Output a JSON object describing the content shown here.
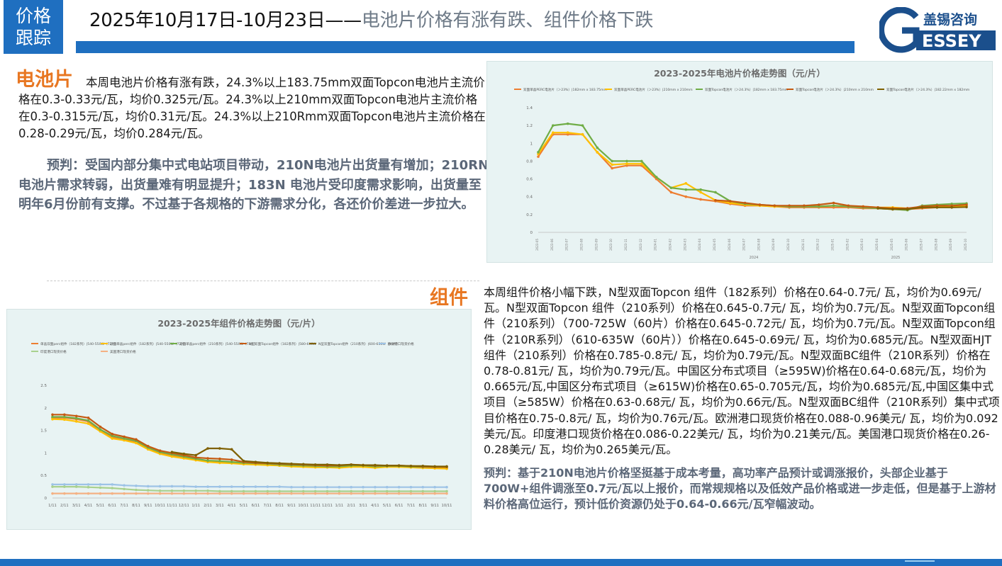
{
  "header": {
    "tag_line1": "价格",
    "tag_line2": "跟踪",
    "date_range": "2025年10月17日-10月23日——",
    "headline": "电池片价格有涨有跌、组件价格下跌",
    "brand_cn": "盖锡咨询",
    "brand_en": "ESSEY",
    "colors": {
      "accent": "#1f6fc0",
      "section": "#e87722",
      "forecast": "#5b6778"
    }
  },
  "cell": {
    "heading": "电池片",
    "summary": "本周电池片价格有涨有跌，24.3%以上183.75mm双面Topcon电池片主流价格在0.3-0.33元/瓦，均价0.325元/瓦。24.3%以上210mm双面Topcon电池片主流价格在0.3-0.315元/瓦，均价0.31元/瓦。24.3%以上210Rmm双面Topcon电池片主流价格在0.28-0.29元/瓦，均价0.284元/瓦。",
    "forecast": "预判：受国内部分集中式电站项目带动，210N电池片出货量有增加；210RN电池片需求转弱，出货量难有明显提升；183N 电池片受印度需求影响，出货量至明年6月份前有支撑。不过基于各规格的下游需求分化，各还价价差进一步拉大。"
  },
  "module": {
    "heading": "组件",
    "summary": "本周组件价格小幅下跌，N型双面Topcon 组件（182系列）价格在0.64-0.7元/ 瓦，均价为0.69元/瓦。N型双面Topcon 组件（210系列）价格在0.645-0.7元/ 瓦，均价为0.7元/瓦。N型双面Topcon组件（210系列）（700-725W（60片）价格在0.645-0.72元/ 瓦，均价为0.7元/瓦。N型双面Topcon组件（210R系列）（610-635W（60片））价格在0.645-0.69元/ 瓦，均价为0.685元/瓦。N型双面HJT组件（210系列）价格在0.785-0.8元/ 瓦，均价为0.79元/瓦。N型双面BC组件（210R系列）价格在0.78-0.81元/ 瓦，均价为0.79元/瓦。中国区分布式项目（≥595W)价格在0.64-0.68元/瓦，均价为0.665元/瓦,中国区分布式项目（≥615W)价格在0.65-0.705元/瓦，均价为0.685元/瓦,中国区集中式项目（≥585W）价格在0.63-0.68元/ 瓦，均价为0.66元/瓦。N型双面BC组件（210R系列）集中式项目价格在0.75-0.8元/ 瓦，均价为0.76元/瓦。欧洲港口现货价格在0.088-0.96美元/ 瓦，均价为0.092美元/瓦。印度港口现货价格在0.086-0.22美元/ 瓦，均价为0.21美元/瓦。美国港口现货价格在0.26-0.28美元/ 瓦，均价为0.265美元/瓦。",
    "forecast": "预判：基于210N电池片价格坚挺基于成本考量，高功率产品预计或调涨报价，头部企业基于700W+组件调涨至0.7元/瓦以上报价，而常规规格以及低效产品价格或进一步走低，但是基于上游材料价格高位运行，预计低价资源仍处于0.64-0.66元/瓦窄幅波动。"
  },
  "chart_data": [
    {
      "type": "line",
      "title": "2023-2025年电池片价格走势图（元/片）",
      "ylim": [
        0,
        1.4
      ],
      "yticks": [
        "1.4",
        "1.2",
        "1",
        "0.8",
        "0.6",
        "0.4",
        "0.2",
        "0"
      ],
      "year_labels": [
        "2024",
        "2025"
      ],
      "grid": false,
      "legend_placement": "top",
      "x": [
        "2023-05",
        "2023-06",
        "2023-07",
        "2023-08",
        "2023-09",
        "2023-10",
        "2023-11",
        "2023-12",
        "2024-01",
        "2024-02",
        "2024-03",
        "2024-04",
        "2024-05",
        "2024-06",
        "2024-07",
        "2024-08",
        "2024-09",
        "2024-10",
        "2024-11",
        "2024-12",
        "2025-01",
        "2025-02",
        "2025-03",
        "2025-04",
        "2025-05",
        "2025-06",
        "2025-07",
        "2025-08",
        "2025-09",
        "2025-10"
      ],
      "series": [
        {
          "name": "双面单晶PERC电池片（＞23%）|182mm x 183.75mm",
          "color": "#ed7d31",
          "values": [
            0.85,
            1.1,
            1.1,
            1.1,
            0.9,
            0.72,
            0.75,
            0.75,
            0.6,
            0.45,
            0.4,
            0.37,
            0.35,
            0.32,
            0.3,
            0.3,
            0.29,
            0.28,
            0.28,
            0.28,
            0.28,
            0.28,
            0.27,
            0.27,
            0.26,
            0.26,
            0.27,
            0.28,
            0.29,
            0.3
          ]
        },
        {
          "name": "双面单晶PERC电池片（＞23%）|210mm x 210mm",
          "color": "#ffc000",
          "values": [
            0.88,
            1.12,
            1.12,
            1.1,
            0.9,
            0.76,
            0.77,
            0.77,
            0.62,
            0.5,
            0.55,
            0.45,
            0.36,
            0.33,
            0.31,
            0.3,
            0.29,
            0.29,
            0.29,
            0.29,
            0.3,
            0.29,
            0.29,
            0.28,
            0.28,
            0.27,
            0.28,
            0.29,
            0.29,
            0.3
          ]
        },
        {
          "name": "双面Topcon电池片（＞24.3%）|182mm x 183.75mm",
          "color": "#70ad47",
          "values": [
            0.9,
            1.2,
            1.22,
            1.2,
            0.95,
            0.8,
            0.8,
            0.8,
            0.62,
            0.5,
            0.48,
            0.48,
            0.45,
            0.35,
            0.32,
            0.31,
            0.3,
            0.29,
            0.29,
            0.29,
            0.3,
            0.29,
            0.28,
            0.27,
            0.26,
            0.25,
            0.3,
            0.31,
            0.32,
            0.325
          ]
        },
        {
          "name": "双面Topcon电池片（＞24.3%）|210mm x 210mm",
          "color": "#c55a11",
          "values": [
            null,
            null,
            null,
            null,
            null,
            null,
            null,
            null,
            null,
            null,
            null,
            null,
            0.36,
            0.35,
            0.33,
            0.31,
            0.3,
            0.3,
            0.3,
            0.31,
            0.33,
            0.3,
            0.29,
            0.28,
            0.27,
            0.27,
            0.29,
            0.3,
            0.3,
            0.31
          ]
        },
        {
          "name": "双面Topcon电池片（＞24.3%）|182.22mm x 182mm",
          "color": "#7f6000",
          "values": [
            null,
            null,
            null,
            null,
            null,
            null,
            null,
            null,
            null,
            null,
            null,
            null,
            null,
            null,
            null,
            null,
            null,
            null,
            null,
            null,
            null,
            null,
            null,
            0.27,
            0.26,
            0.26,
            0.28,
            0.28,
            0.28,
            0.284
          ]
        }
      ]
    },
    {
      "type": "line",
      "title": "2023-2025年组件价格走势图（元/片）",
      "ylim": [
        0,
        2.5
      ],
      "yticks": [
        "2.5",
        "2",
        "1.5",
        "1",
        "0.5",
        "0"
      ],
      "grid": false,
      "legend_placement": "top",
      "x_ticks": [
        "1/11",
        "2/11",
        "3/11",
        "4/11",
        "5/11",
        "6/11",
        "7/11",
        "8/11",
        "9/11",
        "10/11",
        "11/11",
        "12/11",
        "1/11",
        "2/11",
        "3/11",
        "4/11",
        "5/11",
        "6/11",
        "7/11",
        "8/11",
        "9/11",
        "10/11",
        "11/11",
        "12/11",
        "1/11",
        "2/11",
        "3/11",
        "4/11",
        "5/11",
        "6/11",
        "7/11",
        "8/11",
        "9/11",
        "10/11"
      ],
      "series": [
        {
          "name": "单晶双面perc组件（182系列）|540-550W（72片）",
          "color": "#ed7d31",
          "values": [
            1.78,
            1.78,
            1.75,
            1.7,
            1.5,
            1.35,
            1.3,
            1.25,
            1.1,
            1.0,
            0.95,
            0.9,
            0.85,
            0.8,
            0.8,
            0.78,
            0.76,
            0.75,
            0.74,
            0.72,
            0.72,
            0.7,
            0.7,
            0.68,
            0.68,
            0.7,
            0.7,
            0.68,
            0.7,
            0.7,
            0.68,
            0.67,
            0.66,
            0.66
          ]
        },
        {
          "name": "双面单晶perc组件（182系列）|540-550W（72片）",
          "color": "#ffc000",
          "values": [
            1.75,
            1.74,
            1.7,
            1.65,
            1.48,
            1.32,
            1.28,
            1.22,
            1.08,
            0.98,
            0.92,
            0.88,
            0.84,
            0.8,
            0.78,
            0.77,
            0.75,
            0.74,
            0.73,
            0.72,
            0.7,
            0.69,
            0.68,
            0.68,
            0.67,
            0.69,
            0.69,
            0.67,
            0.69,
            0.69,
            0.68,
            0.67,
            0.66,
            0.65
          ]
        },
        {
          "name": "双面单晶perc组件（210系列）|540-550W（72片）",
          "color": "#70ad47",
          "values": [
            1.8,
            1.8,
            1.77,
            1.72,
            1.52,
            1.38,
            1.32,
            1.27,
            1.12,
            1.02,
            0.97,
            0.92,
            0.87,
            0.83,
            0.82,
            0.8,
            0.78,
            0.77,
            0.76,
            0.74,
            0.73,
            0.72,
            0.71,
            0.7,
            0.7,
            0.72,
            0.72,
            0.7,
            0.71,
            0.71,
            0.7,
            0.69,
            0.69,
            0.69
          ]
        },
        {
          "name": "N型双面Topcon组件（182系列）|580-600W",
          "color": "#c55a11",
          "values": [
            1.85,
            1.85,
            1.82,
            1.78,
            1.58,
            1.42,
            1.36,
            1.3,
            1.15,
            1.05,
            1.0,
            0.95,
            0.9,
            0.88,
            0.87,
            0.85,
            0.8,
            0.78,
            0.77,
            0.76,
            0.75,
            0.74,
            0.73,
            0.72,
            0.72,
            0.74,
            0.73,
            0.72,
            0.72,
            0.72,
            0.71,
            0.7,
            0.69,
            0.69
          ]
        },
        {
          "name": "N型双面Topcon组件（210系列）|600-650W（66片）",
          "color": "#7f6000",
          "values": [
            null,
            null,
            null,
            null,
            null,
            null,
            null,
            null,
            null,
            null,
            1.02,
            0.98,
            0.95,
            1.1,
            1.1,
            1.08,
            0.82,
            0.8,
            0.78,
            0.77,
            0.76,
            0.75,
            0.74,
            0.74,
            0.73,
            0.74,
            0.73,
            0.73,
            0.72,
            0.72,
            0.71,
            0.71,
            0.7,
            0.7
          ]
        },
        {
          "name": "欧洲港口现货价格",
          "color": "#9dc3e6",
          "values": [
            0.3,
            0.3,
            0.3,
            0.3,
            0.3,
            0.3,
            0.28,
            0.27,
            0.26,
            0.26,
            0.26,
            0.26,
            0.25,
            0.25,
            0.25,
            0.25,
            0.25,
            0.25,
            0.25,
            0.25,
            0.24,
            0.24,
            0.24,
            0.24,
            0.24,
            0.24,
            0.24,
            0.24,
            0.24,
            0.24,
            0.24,
            0.24,
            0.24,
            0.24
          ]
        },
        {
          "name": "印度港口现货价格",
          "color": "#a9d18e",
          "values": [
            0.25,
            0.25,
            0.25,
            0.24,
            0.23,
            0.22,
            0.2,
            0.18,
            0.17,
            0.16,
            0.16,
            0.16,
            0.16,
            0.16,
            0.15,
            0.15,
            0.15,
            0.15,
            0.15,
            0.15,
            0.15,
            0.15,
            0.15,
            0.15,
            0.15,
            0.15,
            0.15,
            0.15,
            0.15,
            0.15,
            0.15,
            0.15,
            0.15,
            0.15
          ]
        },
        {
          "name": "美国港口现货价格",
          "color": "#f4b183",
          "values": [
            0.1,
            0.1,
            0.1,
            0.1,
            0.1,
            0.1,
            0.1,
            0.1,
            0.1,
            0.1,
            0.1,
            0.1,
            0.1,
            0.1,
            0.1,
            0.1,
            0.1,
            0.1,
            0.1,
            0.1,
            0.1,
            0.1,
            0.1,
            0.1,
            0.1,
            0.1,
            0.1,
            0.1,
            0.1,
            0.1,
            0.1,
            0.1,
            0.1,
            0.1
          ]
        }
      ]
    }
  ]
}
